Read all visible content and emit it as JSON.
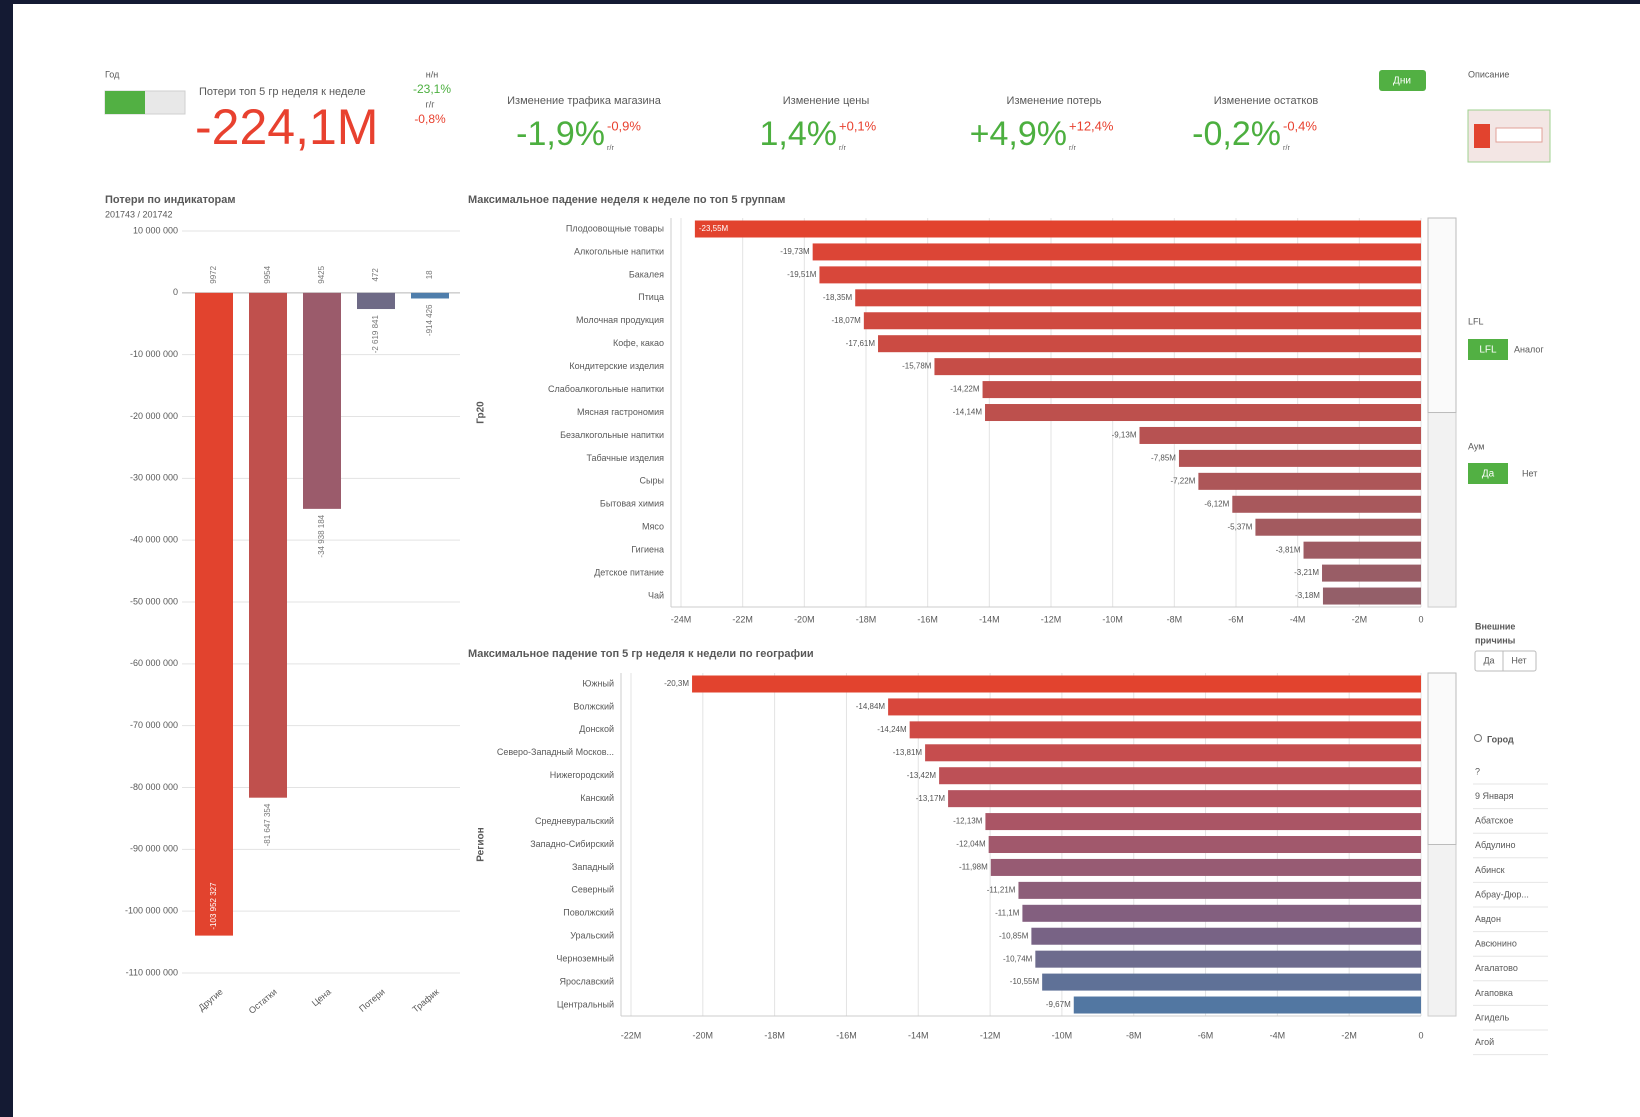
{
  "header": {
    "year_label": "Год",
    "days_button": "Дни",
    "description_label": "Описание"
  },
  "main_kpi": {
    "title": "Потери топ 5 гр неделя к неделе",
    "value": "-224,1M",
    "wow_label": "н/н",
    "wow_value": "-23,1%",
    "yoy_label": "г/г",
    "yoy_value": "-0,8%"
  },
  "kpis": [
    {
      "title": "Изменение трафика магазина",
      "value": "-1,9%",
      "sub_value": "-0,9%",
      "sub_label": "г/г"
    },
    {
      "title": "Изменение цены",
      "value": "1,4%",
      "sub_value": "+0,1%",
      "sub_label": "г/г"
    },
    {
      "title": "Изменение потерь",
      "value": "+4,9%",
      "sub_value": "+12,4%",
      "sub_label": "г/г"
    },
    {
      "title": "Изменение остатков",
      "value": "-0,2%",
      "sub_value": "-0,4%",
      "sub_label": "г/г"
    }
  ],
  "filters": {
    "lfl": {
      "label": "LFL",
      "options": [
        "LFL",
        "Аналог"
      ]
    },
    "aum": {
      "label": "Аум",
      "options": [
        "Да",
        "Нет"
      ]
    },
    "external": {
      "label_lines": [
        "Внешние",
        "причины"
      ],
      "options": [
        "Да",
        "Нет"
      ]
    },
    "city": {
      "label": "Город",
      "items": [
        "?",
        "9 Января",
        "Абатское",
        "Абдулино",
        "Абинск",
        "Абрау-Дюр...",
        "Авдон",
        "Авсюнино",
        "Агалатово",
        "Агаповка",
        "Агидель",
        "Агой"
      ]
    }
  },
  "chart_data": [
    {
      "type": "bar",
      "title": "Потери по индикаторам",
      "subtitle": "201743 / 201742",
      "categories": [
        "Другие",
        "Остатки",
        "Цена",
        "Потери",
        "Трафик"
      ],
      "values": [
        -103952327,
        -81647354,
        -34938184,
        -2619841,
        -914426
      ],
      "value_labels": [
        "-103 952 327",
        "-81 647 354",
        "-34 938 184",
        "-2 619 841",
        "-914 426"
      ],
      "counts": [
        9972,
        9954,
        9425,
        472,
        18
      ],
      "colors": [
        "#e2432e",
        "#c0504d",
        "#9b5b6b",
        "#6e6a86",
        "#4f7eab"
      ],
      "ylim": [
        -110000000,
        10000000
      ],
      "yticks": [
        {
          "value": 10000000,
          "label": "10 000 000"
        },
        0,
        {
          "value": -10000000,
          "label": "-10 000 000"
        },
        {
          "value": -20000000,
          "label": "-20 000 000"
        },
        {
          "value": -30000000,
          "label": "-30 000 000"
        },
        {
          "value": -40000000,
          "label": "-40 000 000"
        },
        {
          "value": -50000000,
          "label": "-50 000 000"
        },
        {
          "value": -60000000,
          "label": "-60 000 000"
        },
        {
          "value": -70000000,
          "label": "-70 000 000"
        },
        {
          "value": -80000000,
          "label": "-80 000 000"
        },
        {
          "value": -90000000,
          "label": "-90 000 000"
        },
        {
          "value": -100000000,
          "label": "-100 000 000"
        },
        {
          "value": -110000000,
          "label": "-110 000 000"
        }
      ],
      "grid": true
    },
    {
      "type": "hbar",
      "title": "Максимальное падение неделя к неделе по топ 5 группам",
      "y_label": "Гр20",
      "categories": [
        "Плодоовощные товары",
        "Алкогольные напитки",
        "Бакалея",
        "Птица",
        "Молочная продукция",
        "Кофе, какао",
        "Кондитерские изделия",
        "Слабоалкогольные напитки",
        "Мясная гастрономия",
        "Безалкогольные напитки",
        "Табачные изделия",
        "Сыры",
        "Бытовая химия",
        "Мясо",
        "Гигиена",
        "Детское питание",
        "Чай"
      ],
      "values": [
        -23.55,
        -19.73,
        -19.51,
        -18.35,
        -18.07,
        -17.61,
        -15.78,
        -14.22,
        -14.14,
        -9.13,
        -7.85,
        -7.22,
        -6.12,
        -5.37,
        -3.81,
        -3.21,
        -3.18
      ],
      "value_labels": [
        "-23,55M",
        "-19,73M",
        "-19,51M",
        "-18,35M",
        "-18,07M",
        "-17,61M",
        "-15,78M",
        "-14,22M",
        "-14,14M",
        "-9,13M",
        "-7,85M",
        "-7,22M",
        "-6,12M",
        "-5,37M",
        "-3,81M",
        "-3,21M",
        "-3,18M"
      ],
      "colors": [
        "#e2432e",
        "#dc4536",
        "#d8473a",
        "#d3483d",
        "#cf4a40",
        "#cb4b43",
        "#c64d47",
        "#c14e4a",
        "#bd504d",
        "#b75252",
        "#b25455",
        "#ad5658",
        "#a8585c",
        "#a35a5f",
        "#9e5b63",
        "#995d66",
        "#945f69"
      ],
      "xlim": [
        -24,
        0
      ],
      "xticks": [
        {
          "value": -24,
          "label": "-24M"
        },
        {
          "value": -22,
          "label": "-22M"
        },
        {
          "value": -20,
          "label": "-20M"
        },
        {
          "value": -18,
          "label": "-18M"
        },
        {
          "value": -16,
          "label": "-16M"
        },
        {
          "value": -14,
          "label": "-14M"
        },
        {
          "value": -12,
          "label": "-12M"
        },
        {
          "value": -10,
          "label": "-10M"
        },
        {
          "value": -8,
          "label": "-8M"
        },
        {
          "value": -6,
          "label": "-6M"
        },
        {
          "value": -4,
          "label": "-4M"
        },
        {
          "value": -2,
          "label": "-2M"
        },
        0
      ],
      "grid": true
    },
    {
      "type": "hbar",
      "title": "Максимальное падение топ 5 гр неделя к недели по географии",
      "y_label": "Регион",
      "categories": [
        "Южный",
        "Волжский",
        "Донской",
        "Северо-Западный Москов...",
        "Нижегородский",
        "Канский",
        "Средневуральский",
        "Западно-Сибирский",
        "Западный",
        "Северный",
        "Поволжский",
        "Уральский",
        "Черноземный",
        "Ярославский",
        "Центральный"
      ],
      "values": [
        -20.3,
        -14.84,
        -14.24,
        -13.81,
        -13.42,
        -13.17,
        -12.13,
        -12.04,
        -11.98,
        -11.21,
        -11.1,
        -10.85,
        -10.74,
        -10.55,
        -9.67
      ],
      "value_labels": [
        "-20,3M",
        "-14,84M",
        "-14,24M",
        "-13,81M",
        "-13,42M",
        "-13,17M",
        "-12,13M",
        "-12,04M",
        "-11,98M",
        "-11,21M",
        "-11,1M",
        "-10,85M",
        "-10,74M",
        "-10,55M",
        "-9,67M"
      ],
      "colors": [
        "#e2432e",
        "#d8473c",
        "#cf4a45",
        "#c64d4e",
        "#bd5056",
        "#b4535e",
        "#aa5565",
        "#a1586c",
        "#975b73",
        "#8d5e79",
        "#835f7f",
        "#786385",
        "#6d6b8d",
        "#5f7197",
        "#5277a2"
      ],
      "xlim": [
        -22,
        0
      ],
      "xticks": [
        {
          "value": -22,
          "label": "-22M"
        },
        {
          "value": -20,
          "label": "-20M"
        },
        {
          "value": -18,
          "label": "-18M"
        },
        {
          "value": -16,
          "label": "-16M"
        },
        {
          "value": -14,
          "label": "-14M"
        },
        {
          "value": -12,
          "label": "-12M"
        },
        {
          "value": -10,
          "label": "-10M"
        },
        {
          "value": -8,
          "label": "-8M"
        },
        {
          "value": -6,
          "label": "-6M"
        },
        {
          "value": -4,
          "label": "-4M"
        },
        {
          "value": -2,
          "label": "-2M"
        },
        0
      ],
      "grid": true
    }
  ]
}
